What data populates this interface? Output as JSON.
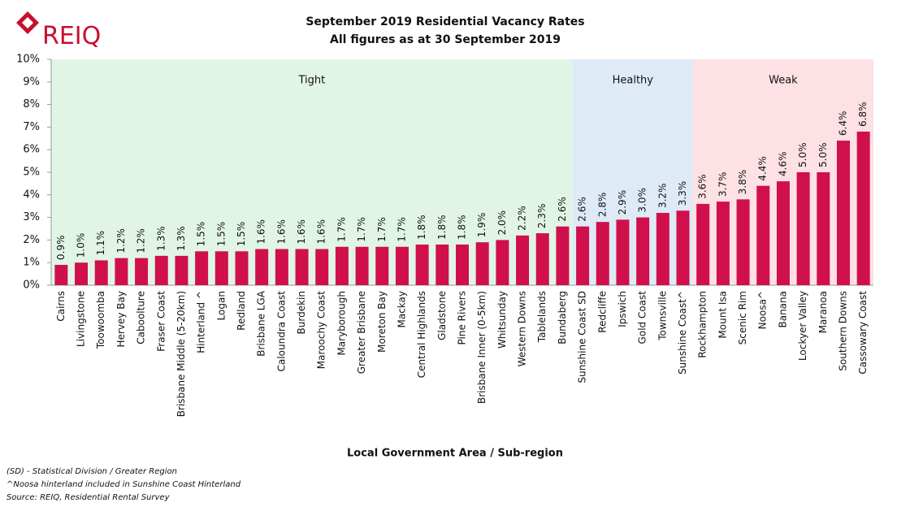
{
  "logo": "REIQ",
  "chart_data": {
    "type": "bar",
    "title": "September 2019 Residential Vacancy Rates",
    "subtitle": "All figures as at 30 September 2019",
    "x_label": "Local Government Area / Sub-region",
    "categories": [
      "Cairns",
      "Livingstone",
      "Toowoomba",
      "Hervey Bay",
      "Caboolture",
      "Fraser Coast",
      "Brisbane Middle (5-20km)",
      "Hinterland ^",
      "Logan",
      "Redland",
      "Brisbane LGA",
      "Caloundra Coast",
      "Burdekin",
      "Maroochy Coast",
      "Maryborough",
      "Greater Brisbane",
      "Moreton Bay",
      "Mackay",
      "Central Highlands",
      "Gladstone",
      "Pine Rivers",
      "Brisbane Inner (0-5km)",
      "Whitsunday",
      "Western Downs",
      "Tablelands",
      "Bundaberg",
      "Sunshine Coast SD",
      "Redcliffe",
      "Ipswich",
      "Gold Coast",
      "Townsville",
      "Sunshine Coast^",
      "Rockhampton",
      "Mount Isa",
      "Scenic Rim",
      "Noosa^",
      "Banana",
      "Lockyer Valley",
      "Maranoa",
      "Southern Downs",
      "Cassowary Coast"
    ],
    "values": [
      0.9,
      1.0,
      1.1,
      1.2,
      1.2,
      1.3,
      1.3,
      1.5,
      1.5,
      1.5,
      1.6,
      1.6,
      1.6,
      1.6,
      1.7,
      1.7,
      1.7,
      1.7,
      1.8,
      1.8,
      1.8,
      1.9,
      2.0,
      2.2,
      2.3,
      2.6,
      2.6,
      2.8,
      2.9,
      3.0,
      3.2,
      3.3,
      3.6,
      3.7,
      3.8,
      4.4,
      4.6,
      5.0,
      5.0,
      6.4,
      6.8
    ],
    "value_labels": [
      "0.9%",
      "1.0%",
      "1.1%",
      "1.2%",
      "1.2%",
      "1.3%",
      "1.3%",
      "1.5%",
      "1.5%",
      "1.5%",
      "1.6%",
      "1.6%",
      "1.6%",
      "1.6%",
      "1.7%",
      "1.7%",
      "1.7%",
      "1.7%",
      "1.8%",
      "1.8%",
      "1.8%",
      "1.9%",
      "2.0%",
      "2.2%",
      "2.3%",
      "2.6%",
      "2.6%",
      "2.8%",
      "2.9%",
      "3.0%",
      "3.2%",
      "3.3%",
      "3.6%",
      "3.7%",
      "3.8%",
      "4.4%",
      "4.6%",
      "5.0%",
      "5.0%",
      "6.4%",
      "6.8%"
    ],
    "color": "#d0104c",
    "ylim": [
      0,
      10
    ],
    "yticks": [
      {
        "value": 0,
        "label": "0%"
      },
      {
        "value": 1,
        "label": "1%"
      },
      {
        "value": 2,
        "label": "2%"
      },
      {
        "value": 3,
        "label": "3%"
      },
      {
        "value": 4,
        "label": "4%"
      },
      {
        "value": 5,
        "label": "5%"
      },
      {
        "value": 6,
        "label": "6%"
      },
      {
        "value": 7,
        "label": "7%"
      },
      {
        "value": 8,
        "label": "8%"
      },
      {
        "value": 9,
        "label": "9%"
      },
      {
        "value": 10,
        "label": "10%"
      }
    ],
    "zones": [
      {
        "label": "Tight",
        "from": "Cairns",
        "to": "Bundaberg",
        "color": "#e1f5e7"
      },
      {
        "label": "Healthy",
        "from": "Sunshine Coast SD",
        "to": "Sunshine Coast^",
        "color": "#deeaf6"
      },
      {
        "label": "Weak",
        "from": "Rockhampton",
        "to": "Cassowary Coast",
        "color": "#fde1e4"
      }
    ]
  },
  "notes": [
    "(SD) - Statistical Division / Greater Region",
    "^Noosa hinterland included in Sunshine Coast Hinterland",
    "Source: REIQ, Residential Rental Survey"
  ]
}
